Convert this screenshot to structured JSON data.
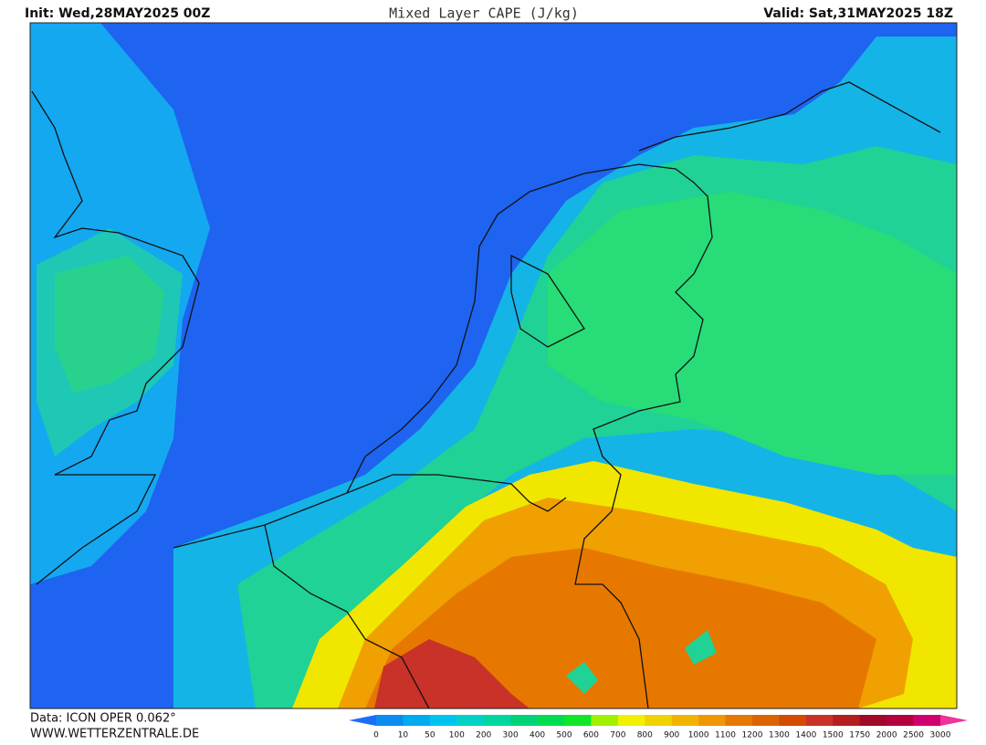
{
  "header": {
    "init": "Init: Wed,28MAY2025 00Z",
    "title": "Mixed Layer CAPE (J/kg)",
    "valid": "Valid: Sat,31MAY2025 18Z"
  },
  "footer": {
    "data_source": "Data: ICON OPER 0.062°",
    "website": "WWW.WETTERZENTRALE.DE"
  },
  "colorbar": {
    "labels": [
      0,
      10,
      50,
      100,
      200,
      300,
      400,
      500,
      600,
      700,
      800,
      900,
      1000,
      1100,
      1200,
      1300,
      1400,
      1500,
      1750,
      2000,
      2500,
      3000
    ],
    "colors": [
      "#1e6ef5",
      "#0a8cf0",
      "#00aaf0",
      "#00c4f0",
      "#00d2c8",
      "#00d7a0",
      "#00d278",
      "#00dc50",
      "#10e628",
      "#a0f000",
      "#f0f000",
      "#f0d200",
      "#f0b400",
      "#f09600",
      "#e67800",
      "#dc6400",
      "#d24b00",
      "#c83228",
      "#b41e1e",
      "#a00a28",
      "#b4003c",
      "#d2006e",
      "#f0329b"
    ]
  }
}
